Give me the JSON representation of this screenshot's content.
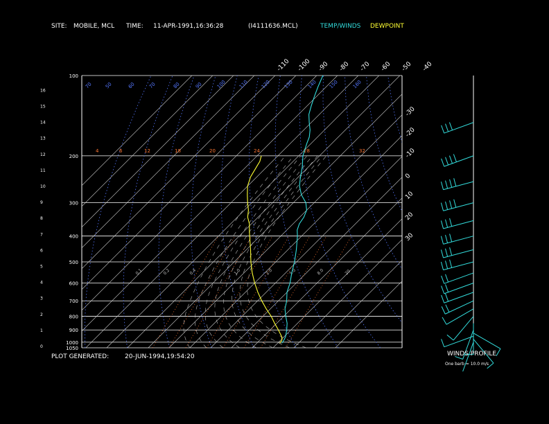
{
  "header": {
    "site_label": "SITE:",
    "site_value": "MOBILE, MCL",
    "time_label": "TIME:",
    "time_value": "11-APR-1991,16:36:28",
    "file_id": "(I4111636.MCL)",
    "legend_temp": "TEMP/WINDS",
    "legend_dew": "DEWPOINT"
  },
  "footer": {
    "generated_label": "PLOT GENERATED:",
    "generated_value": "20-JUN-1994,19:54:20",
    "winds_title": "WINDS PROFILE",
    "barb_note": "One barb = 10.0 m/s"
  },
  "colors": {
    "temp": "#33dddd",
    "dewpoint": "#ffff33",
    "isotherm": "#cccccc",
    "dry_adiabat": "#5577ff",
    "moist_adiabat": "#bbbbbb",
    "mixing_ratio": "#ff7733",
    "isobar": "#ffffff",
    "wind": "#33dddd",
    "header_temp": "#33dddd",
    "header_dew": "#ffff33"
  },
  "chart_data": {
    "type": "line",
    "title": "",
    "pressure_labels": [
      "100",
      "200",
      "300",
      "400",
      "500",
      "600",
      "700",
      "800",
      "900",
      "1000",
      "1050"
    ],
    "height_ticks": [
      "0",
      "1",
      "2",
      "3",
      "4",
      "5",
      "6",
      "7",
      "8",
      "9",
      "10",
      "11",
      "12",
      "13",
      "14",
      "15",
      "16"
    ],
    "top_temp_labels": [
      "-110",
      "-100",
      "-90",
      "-80",
      "-70",
      "-60",
      "-50",
      "-40"
    ],
    "right_temp_labels": [
      "-30",
      "-20",
      "-10",
      "0",
      "10",
      "20",
      "30"
    ],
    "dry_adiabat_labels": [
      "70",
      "50",
      "60",
      "70",
      "80",
      "90",
      "100",
      "110",
      "120",
      "130",
      "140",
      "150",
      "160"
    ],
    "mixing_ratio_labels": [
      "0.1",
      "0.2",
      "0.4",
      "1.0",
      "2.0",
      "5.0",
      "8.0",
      "20"
    ],
    "upper_labels": [
      "4",
      "6",
      "12",
      "18",
      "20",
      "24",
      "28",
      "32"
    ],
    "series": [
      {
        "name": "TEMP/WINDS",
        "points": [
          [
            1008,
            22
          ],
          [
            980,
            21.5
          ],
          [
            950,
            20.5
          ],
          [
            900,
            18
          ],
          [
            850,
            15
          ],
          [
            800,
            11
          ],
          [
            750,
            7
          ],
          [
            700,
            4
          ],
          [
            650,
            0
          ],
          [
            600,
            -3
          ],
          [
            550,
            -7
          ],
          [
            500,
            -11
          ],
          [
            450,
            -16
          ],
          [
            400,
            -22
          ],
          [
            380,
            -25
          ],
          [
            360,
            -27
          ],
          [
            340,
            -28
          ],
          [
            320,
            -30
          ],
          [
            300,
            -34
          ],
          [
            280,
            -40
          ],
          [
            260,
            -45
          ],
          [
            250,
            -47
          ],
          [
            240,
            -49
          ],
          [
            220,
            -53
          ],
          [
            200,
            -58
          ],
          [
            190,
            -60
          ],
          [
            180,
            -62
          ],
          [
            170,
            -64
          ],
          [
            160,
            -67
          ],
          [
            150,
            -71
          ],
          [
            140,
            -75
          ],
          [
            130,
            -78
          ],
          [
            120,
            -81
          ],
          [
            110,
            -84
          ],
          [
            100,
            -87
          ]
        ]
      },
      {
        "name": "DEWPOINT",
        "points": [
          [
            1008,
            21
          ],
          [
            980,
            20.5
          ],
          [
            950,
            18.5
          ],
          [
            900,
            14
          ],
          [
            850,
            9
          ],
          [
            800,
            4
          ],
          [
            750,
            -2
          ],
          [
            700,
            -8
          ],
          [
            650,
            -14
          ],
          [
            600,
            -20
          ],
          [
            550,
            -26
          ],
          [
            500,
            -32
          ],
          [
            450,
            -38
          ],
          [
            400,
            -45
          ],
          [
            380,
            -48
          ],
          [
            360,
            -51
          ],
          [
            340,
            -55
          ],
          [
            320,
            -58
          ],
          [
            300,
            -62
          ],
          [
            280,
            -66
          ],
          [
            260,
            -70
          ],
          [
            240,
            -73
          ],
          [
            220,
            -75
          ],
          [
            210,
            -76
          ],
          [
            200,
            -78
          ]
        ]
      }
    ],
    "winds": [
      {
        "pressure": 1000,
        "dir": 200,
        "speed": 4
      },
      {
        "pressure": 975,
        "dir": 140,
        "speed": 6
      },
      {
        "pressure": 950,
        "dir": 250,
        "speed": 8
      },
      {
        "pressure": 925,
        "dir": 120,
        "speed": 7
      },
      {
        "pressure": 900,
        "dir": 200,
        "speed": 6
      },
      {
        "pressure": 850,
        "dir": 180,
        "speed": 8
      },
      {
        "pressure": 800,
        "dir": 220,
        "speed": 12
      },
      {
        "pressure": 750,
        "dir": 240,
        "speed": 14
      },
      {
        "pressure": 700,
        "dir": 245,
        "speed": 16
      },
      {
        "pressure": 650,
        "dir": 250,
        "speed": 18
      },
      {
        "pressure": 600,
        "dir": 250,
        "speed": 20
      },
      {
        "pressure": 550,
        "dir": 250,
        "speed": 22
      },
      {
        "pressure": 500,
        "dir": 255,
        "speed": 25
      },
      {
        "pressure": 450,
        "dir": 255,
        "speed": 28
      },
      {
        "pressure": 400,
        "dir": 255,
        "speed": 30
      },
      {
        "pressure": 350,
        "dir": 255,
        "speed": 33
      },
      {
        "pressure": 300,
        "dir": 255,
        "speed": 36
      },
      {
        "pressure": 250,
        "dir": 255,
        "speed": 40
      },
      {
        "pressure": 200,
        "dir": 250,
        "speed": 38
      },
      {
        "pressure": 150,
        "dir": 250,
        "speed": 32
      }
    ]
  }
}
